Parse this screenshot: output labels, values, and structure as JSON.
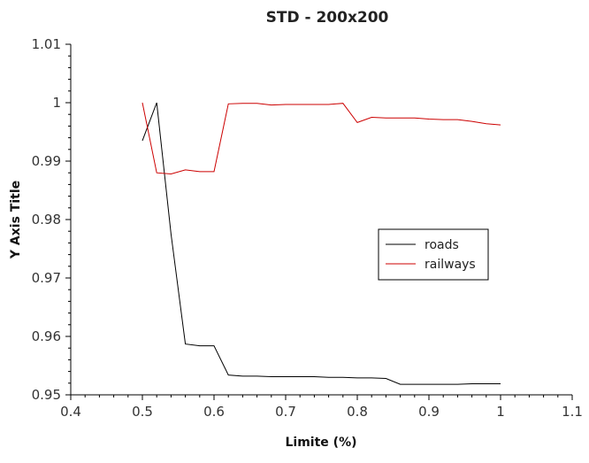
{
  "chart_data": {
    "type": "line",
    "title": "STD - 200x200",
    "xlabel": "Limite (%)",
    "ylabel": "Y Axis Title",
    "xlim": [
      0.4,
      1.1
    ],
    "ylim": [
      0.95,
      1.01
    ],
    "xticks": [
      "0.4",
      "0.5",
      "0.6",
      "0.7",
      "0.8",
      "0.9",
      "1",
      "1.1"
    ],
    "yticks": [
      "0.95",
      "0.96",
      "0.97",
      "0.98",
      "0.99",
      "1",
      "1.01"
    ],
    "grid": false,
    "legend_position": "right-middle",
    "series": [
      {
        "name": "roads",
        "color": "#000000",
        "x": [
          0.5,
          0.52,
          0.54,
          0.56,
          0.58,
          0.6,
          0.62,
          0.64,
          0.66,
          0.68,
          0.7,
          0.72,
          0.74,
          0.76,
          0.78,
          0.8,
          0.82,
          0.84,
          0.86,
          0.88,
          0.9,
          0.92,
          0.94,
          0.96,
          0.98,
          1.0
        ],
        "y": [
          0.9935,
          1.0,
          0.9775,
          0.9587,
          0.9584,
          0.9584,
          0.9534,
          0.9532,
          0.9532,
          0.9531,
          0.9531,
          0.9531,
          0.9531,
          0.953,
          0.953,
          0.9529,
          0.9529,
          0.9528,
          0.9518,
          0.9518,
          0.9518,
          0.9518,
          0.9518,
          0.9519,
          0.9519,
          0.9519
        ]
      },
      {
        "name": "railways",
        "color": "#cc0000",
        "x": [
          0.5,
          0.52,
          0.54,
          0.56,
          0.58,
          0.6,
          0.62,
          0.64,
          0.66,
          0.68,
          0.7,
          0.72,
          0.74,
          0.76,
          0.78,
          0.8,
          0.82,
          0.84,
          0.86,
          0.88,
          0.9,
          0.92,
          0.94,
          0.96,
          0.98,
          1.0
        ],
        "y": [
          1.0,
          0.988,
          0.9878,
          0.9885,
          0.9882,
          0.9882,
          0.9998,
          0.9999,
          0.9999,
          0.9996,
          0.9997,
          0.9997,
          0.9997,
          0.9997,
          0.9999,
          0.9966,
          0.9975,
          0.9974,
          0.9974,
          0.9974,
          0.9972,
          0.9971,
          0.9971,
          0.9968,
          0.9964,
          0.9962
        ]
      }
    ]
  }
}
